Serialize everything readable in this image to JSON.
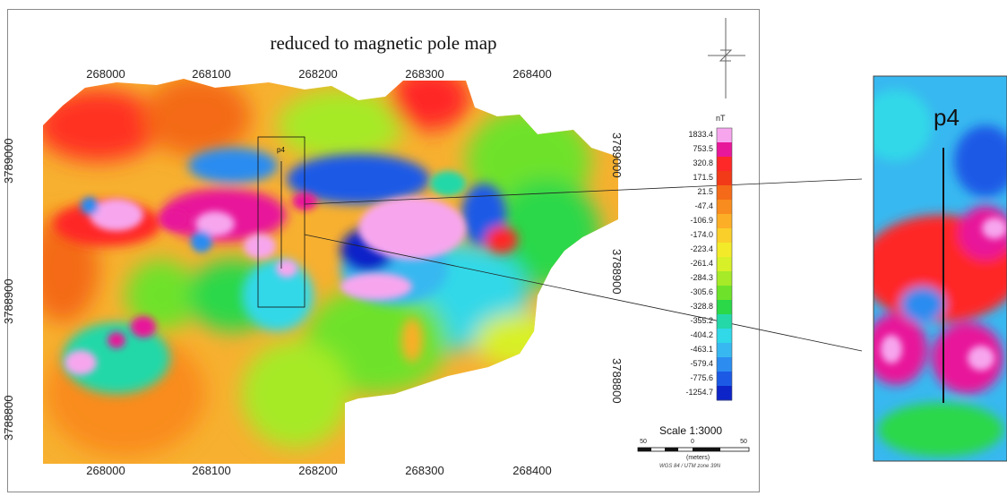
{
  "map": {
    "title": "reduced to magnetic pole map",
    "x_ticks_top": [
      "268000",
      "268100",
      "268200",
      "268300",
      "268400"
    ],
    "x_ticks_bottom": [
      "268000",
      "268100",
      "268200",
      "268300",
      "268400"
    ],
    "y_ticks_left": [
      "3789000",
      "3788900",
      "3788800"
    ],
    "y_ticks_right": [
      "3789000",
      "3788900",
      "3788800"
    ],
    "profile_label": "p4"
  },
  "legend": {
    "unit": "nT",
    "levels": [
      "1833.4",
      "753.5",
      "320.8",
      "171.5",
      "21.5",
      "-47.4",
      "-106.9",
      "-174.0",
      "-223.4",
      "-261.4",
      "-284.3",
      "-305.6",
      "-328.8",
      "-355.2",
      "-404.2",
      "-463.1",
      "-579.4",
      "-775.6",
      "-1254.7"
    ],
    "colors": [
      "#f7a6ee",
      "#e8189a",
      "#ff2828",
      "#f23a18",
      "#f46a18",
      "#f98c1e",
      "#fcae26",
      "#fbcf2a",
      "#f3ea2a",
      "#d8f028",
      "#a6ea28",
      "#6ee22a",
      "#2ad848",
      "#24d8a8",
      "#30d8e8",
      "#38b8f0",
      "#2c8cf0",
      "#1c5ae6",
      "#0c24c8"
    ]
  },
  "scale": {
    "label": "Scale 1:3000",
    "ticks": [
      "50",
      "0",
      "50"
    ],
    "units": "(meters)",
    "projection": "WGS 84 / UTM zone 39N"
  },
  "inset": {
    "label": "p4"
  }
}
